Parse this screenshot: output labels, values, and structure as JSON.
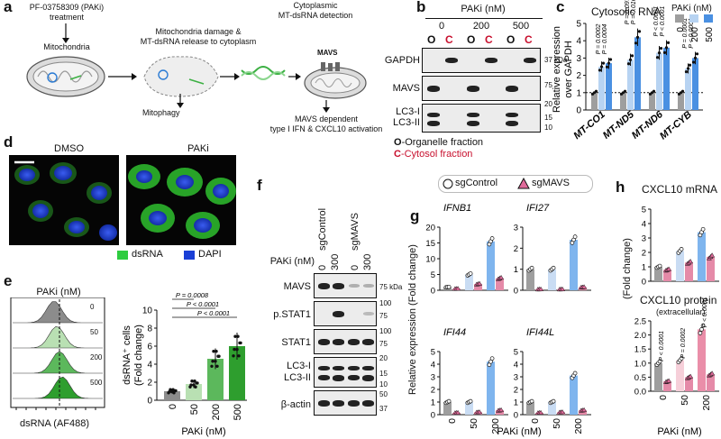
{
  "panel_labels": {
    "a": "a",
    "b": "b",
    "c": "c",
    "d": "d",
    "e": "e",
    "f": "f",
    "g": "g",
    "h": "h"
  },
  "panel_a": {
    "treatment_line1": "PF-03758309 (PAKi)",
    "treatment_line2": "treatment",
    "mitochondria": "Mitochondria",
    "damage_line1": "Mitochondria damage &",
    "damage_line2": "MT-dsRNA release to cytoplasm",
    "detect_line1": "Cytoplasmic",
    "detect_line2": "MT-dsRNA detection",
    "mavs": "MAVS",
    "mitophagy": "Mitophagy",
    "outcome_line1": "MAVS dependent",
    "outcome_line2": "type I IFN & CXCL10 activation"
  },
  "panel_b": {
    "header": "PAKi (nM)",
    "doses": [
      "0",
      "200",
      "500"
    ],
    "lanes": [
      "O",
      "C",
      "O",
      "C",
      "O",
      "C"
    ],
    "rows": [
      "GAPDH",
      "MAVS",
      "LC3-I",
      "LC3-II"
    ],
    "markers": {
      "gapdh": "37 kDa",
      "mavs": "75",
      "lc3_20": "20",
      "lc3_15": "15",
      "lc3_10": "10"
    },
    "legend_o_letter": "O",
    "legend_o_text": "-Organelle fraction",
    "legend_c_letter": "C",
    "legend_c_text": "-Cytosol fraction",
    "colors": {
      "organelle": "#111111",
      "cytosol": "#c8102e"
    }
  },
  "panel_c": {
    "title": "Cytosolic RNA",
    "legend_title": "PAKi (nM)",
    "legend_doses": [
      "0",
      "200",
      "500"
    ],
    "ylabel_line1": "Relative expression",
    "ylabel_line2": "over GAPDH",
    "colors": [
      "#9e9e9e",
      "#b7d3f2",
      "#4a90e2"
    ]
  },
  "panel_d": {
    "dmso": "DMSO",
    "paki": "PAKi",
    "legend_dsrna": "dsRNA",
    "legend_dapi": "DAPI",
    "colors": {
      "dsrna": "#2ecc40",
      "dapi": "#1a3fd6"
    }
  },
  "panel_e": {
    "hist_header": "PAKi (nM)",
    "hist_doses": [
      "0",
      "50",
      "200",
      "500"
    ],
    "hist_xlabel": "dsRNA (AF488)",
    "ylabel_line1": "dsRNA⁺ cells",
    "ylabel_line2": "(Fold change)",
    "xlabel": "PAKi (nM)",
    "pvalues": [
      "P = 0.0008",
      "P < 0.0001",
      "P < 0.0001"
    ],
    "colors": [
      "#8c8c8c",
      "#b9e0b3",
      "#5cb85c",
      "#2e9e2e"
    ]
  },
  "panel_f": {
    "groups": [
      "sgControl",
      "sgMAVS"
    ],
    "dose_header": "PAKi (nM)",
    "doses": [
      "0",
      "300",
      "0",
      "300"
    ],
    "rows": [
      "MAVS",
      "p.STAT1",
      "STAT1",
      "LC3-I",
      "LC3-II",
      "β-actin"
    ],
    "markers": {
      "mavs": "75 kDa",
      "pstat1_100": "100",
      "pstat1_75": "75",
      "stat1_100": "100",
      "stat1_75": "75",
      "lc3_20": "20",
      "lc3_15": "15",
      "lc3_10": "10",
      "actin_50": "50",
      "actin_37": "37"
    }
  },
  "panel_g": {
    "legend_sgcontrol": "sgControl",
    "legend_sgmavs": "sgMAVS",
    "ylabel": "Relative expression (Fold change)",
    "xlabel": "PAKi (nM)",
    "doses": [
      "0",
      "50",
      "200"
    ]
  },
  "panel_h": {
    "top_title": "CXCL10 mRNA",
    "bottom_title": "CXCL10 protein",
    "bottom_subtitle": "(extracellular)",
    "ylabel": "(Fold change)",
    "xlabel": "PAKi (nM)",
    "doses": [
      "0",
      "50",
      "200"
    ],
    "pvalues": [
      "P < 0.0001",
      "P = 0.0002",
      "P < 0.0001"
    ]
  },
  "chart_data": [
    {
      "id": "c",
      "type": "bar",
      "title": "Cytosolic RNA",
      "categories": [
        "MT-CO1",
        "MT-ND5",
        "MT-ND6",
        "MT-CYB"
      ],
      "series": [
        {
          "name": "0",
          "values": [
            1.0,
            1.0,
            1.0,
            1.0
          ]
        },
        {
          "name": "200",
          "values": [
            2.5,
            2.9,
            3.3,
            2.4
          ]
        },
        {
          "name": "500",
          "values": [
            2.7,
            4.2,
            3.6,
            3.0
          ]
        }
      ],
      "pvalues": [
        [
          "P = 0.0002",
          "P = 0.0004"
        ],
        [
          "P = 0.0973",
          "P = 0.0169"
        ],
        [
          "P < 0.0001",
          "P < 0.0001"
        ],
        [
          "P = 0.0001",
          "P < 0.0001"
        ]
      ],
      "ylim": [
        0,
        5
      ],
      "yticks": [
        0,
        1,
        2,
        3,
        4,
        5
      ]
    },
    {
      "id": "e",
      "type": "bar",
      "categories": [
        "0",
        "50",
        "200",
        "500"
      ],
      "values": [
        1.0,
        1.8,
        4.6,
        6.0
      ],
      "ylim": [
        0,
        10
      ],
      "yticks": [
        0,
        2,
        4,
        6,
        8,
        10
      ]
    },
    {
      "id": "g",
      "type": "bar",
      "categories": [
        "0",
        "50",
        "200"
      ],
      "panels": [
        {
          "gene": "IFNB1",
          "ylim": [
            0,
            20
          ],
          "yticks": [
            0,
            5,
            10,
            15,
            20
          ],
          "sgControl": [
            1.0,
            5.0,
            15.5
          ],
          "sgMAVS": [
            0.5,
            2.0,
            3.8
          ]
        },
        {
          "gene": "IFI27",
          "ylim": [
            0,
            3
          ],
          "yticks": [
            0,
            1,
            2,
            3
          ],
          "sgControl": [
            1.0,
            1.0,
            2.4
          ],
          "sgMAVS": [
            0.05,
            0.05,
            0.15
          ]
        },
        {
          "gene": "IFI44",
          "ylim": [
            0,
            5
          ],
          "yticks": [
            0,
            1,
            2,
            3,
            4,
            5
          ],
          "sgControl": [
            1.0,
            1.0,
            4.2
          ],
          "sgMAVS": [
            0.15,
            0.2,
            0.35
          ]
        },
        {
          "gene": "IFI44L",
          "ylim": [
            0,
            5
          ],
          "yticks": [
            0,
            1,
            2,
            3,
            4,
            5
          ],
          "sgControl": [
            1.0,
            1.0,
            3.1
          ],
          "sgMAVS": [
            0.15,
            0.2,
            0.35
          ]
        }
      ]
    },
    {
      "id": "h",
      "type": "bar",
      "categories": [
        "0",
        "50",
        "200"
      ],
      "panels": [
        {
          "title": "CXCL10 mRNA",
          "ylim": [
            0,
            5
          ],
          "yticks": [
            0,
            1,
            2,
            3,
            4,
            5
          ],
          "sgControl": [
            1.0,
            2.1,
            3.4
          ],
          "sgMAVS": [
            0.8,
            1.3,
            1.7
          ]
        },
        {
          "title": "CXCL10 protein",
          "ylim": [
            0,
            2.5
          ],
          "yticks": [
            0,
            0.5,
            1.0,
            1.5,
            2.0,
            2.5
          ],
          "sgControl": [
            1.0,
            1.1,
            2.2
          ],
          "sgMAVS": [
            0.35,
            0.5,
            0.6
          ]
        }
      ]
    }
  ]
}
